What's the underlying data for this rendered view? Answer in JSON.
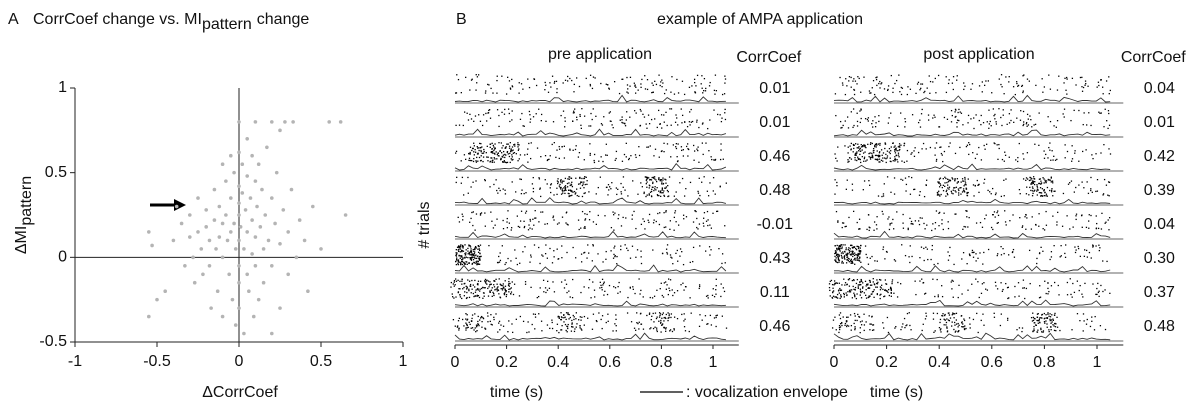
{
  "chart_data": [
    {
      "type": "scatter",
      "panel_label": "A",
      "title": "CorrCoef change vs. MI",
      "title_subscript": "pattern",
      "title_suffix": "change",
      "xlabel": "ΔCorrCoef",
      "ylabel": "ΔMI",
      "ylabel_subscript": "pattern",
      "xlim": [
        -1,
        1
      ],
      "ylim": [
        -0.5,
        1
      ],
      "xticks": [
        -1,
        -0.5,
        0,
        0.5,
        1
      ],
      "yticks": [
        -0.5,
        0,
        0.5,
        1
      ],
      "color": "#b4b4b4",
      "x": [
        -0.55,
        -0.53,
        -0.5,
        -0.45,
        -0.55,
        -0.4,
        -0.38,
        -0.35,
        -0.33,
        -0.3,
        -0.3,
        -0.28,
        -0.27,
        -0.25,
        -0.25,
        -0.23,
        -0.22,
        -0.2,
        -0.2,
        -0.18,
        -0.18,
        -0.17,
        -0.15,
        -0.15,
        -0.14,
        -0.13,
        -0.12,
        -0.12,
        -0.1,
        -0.1,
        -0.1,
        -0.1,
        -0.08,
        -0.08,
        -0.07,
        -0.06,
        -0.05,
        -0.05,
        -0.05,
        -0.04,
        -0.03,
        -0.03,
        -0.02,
        -0.02,
        0,
        0,
        0,
        0,
        0,
        0,
        0,
        0,
        0,
        0.01,
        0.02,
        0.02,
        0.03,
        0.03,
        0.04,
        0.05,
        0.05,
        0.05,
        0.05,
        0.06,
        0.07,
        0.08,
        0.08,
        0.08,
        0.09,
        0.1,
        0.1,
        0.1,
        0.11,
        0.12,
        0.12,
        0.13,
        0.14,
        0.15,
        0.15,
        0.16,
        0.17,
        0.18,
        0.2,
        0.2,
        0.2,
        0.22,
        0.23,
        0.25,
        0.25,
        0.27,
        0.28,
        0.3,
        0.3,
        0.32,
        0.33,
        0.35,
        0.37,
        0.4,
        0.42,
        0.45,
        0.5,
        0.55,
        0.62,
        0.65,
        0.2,
        0.1,
        0.25
      ],
      "y": [
        0.15,
        0.07,
        -0.25,
        -0.2,
        -0.35,
        0.1,
        0.3,
        0.2,
        -0.05,
        0.25,
        0.12,
        0,
        -0.15,
        0.35,
        0.15,
        0.05,
        -0.1,
        0.28,
        0.18,
        0.1,
        -0.05,
        -0.3,
        0.4,
        0.22,
        0.05,
        -0.2,
        0.3,
        0.12,
        0.55,
        0.2,
        0,
        -0.35,
        0.45,
        0.25,
        0.1,
        -0.1,
        0.6,
        0.35,
        0.15,
        -0.25,
        0.5,
        0.2,
        0.05,
        -0.4,
        0.32,
        0.8,
        0.62,
        0.42,
        0.25,
        0.1,
        -0.05,
        -0.15,
        -0.3,
        0.18,
        0.55,
        0.38,
        0.05,
        -0.45,
        0.28,
        0.7,
        0.48,
        0.15,
        -0.1,
        -0.2,
        0.35,
        0.6,
        0.22,
        0.02,
        -0.35,
        0.45,
        0.12,
        -0.05,
        0.3,
        0.55,
        -0.25,
        0.18,
        0.4,
        0.05,
        -0.15,
        0.25,
        0.65,
        0.1,
        0.35,
        -0.05,
        -0.45,
        0.2,
        0.5,
        0.08,
        -0.3,
        0.28,
        0.8,
        0.15,
        -0.1,
        0.4,
        0.8,
        0,
        0.22,
        0.1,
        -0.2,
        0.3,
        0.05,
        0.8,
        0.8,
        0.25,
        0.8,
        0.8,
        0.75
      ]
    },
    {
      "type": "raster",
      "panel_label": "B",
      "title": "example of AMPA application",
      "ylabel": "# trials",
      "xlabel": "time (s)",
      "legend": ": vocalization envelope",
      "xlim": [
        0,
        1.1
      ],
      "xticks": [
        0,
        0.2,
        0.4,
        0.6,
        0.8,
        1
      ],
      "panels": [
        {
          "title": "pre application",
          "value_header": "CorrCoef",
          "values": [
            0.01,
            0.01,
            0.46,
            0.48,
            -0.01,
            0.43,
            0.11,
            0.46
          ],
          "value_labels": [
            "0.01",
            "0.01",
            "0.46",
            "0.48",
            "-0.01",
            "0.43",
            "0.11",
            "0.46"
          ]
        },
        {
          "title": "post application",
          "value_header": "CorrCoef",
          "values": [
            0.04,
            0.01,
            0.42,
            0.39,
            0.04,
            0.3,
            0.37,
            0.48
          ],
          "value_labels": [
            "0.04",
            "0.01",
            "0.42",
            "0.39",
            "0.04",
            "0.30",
            "0.37",
            "0.48"
          ]
        }
      ]
    }
  ]
}
